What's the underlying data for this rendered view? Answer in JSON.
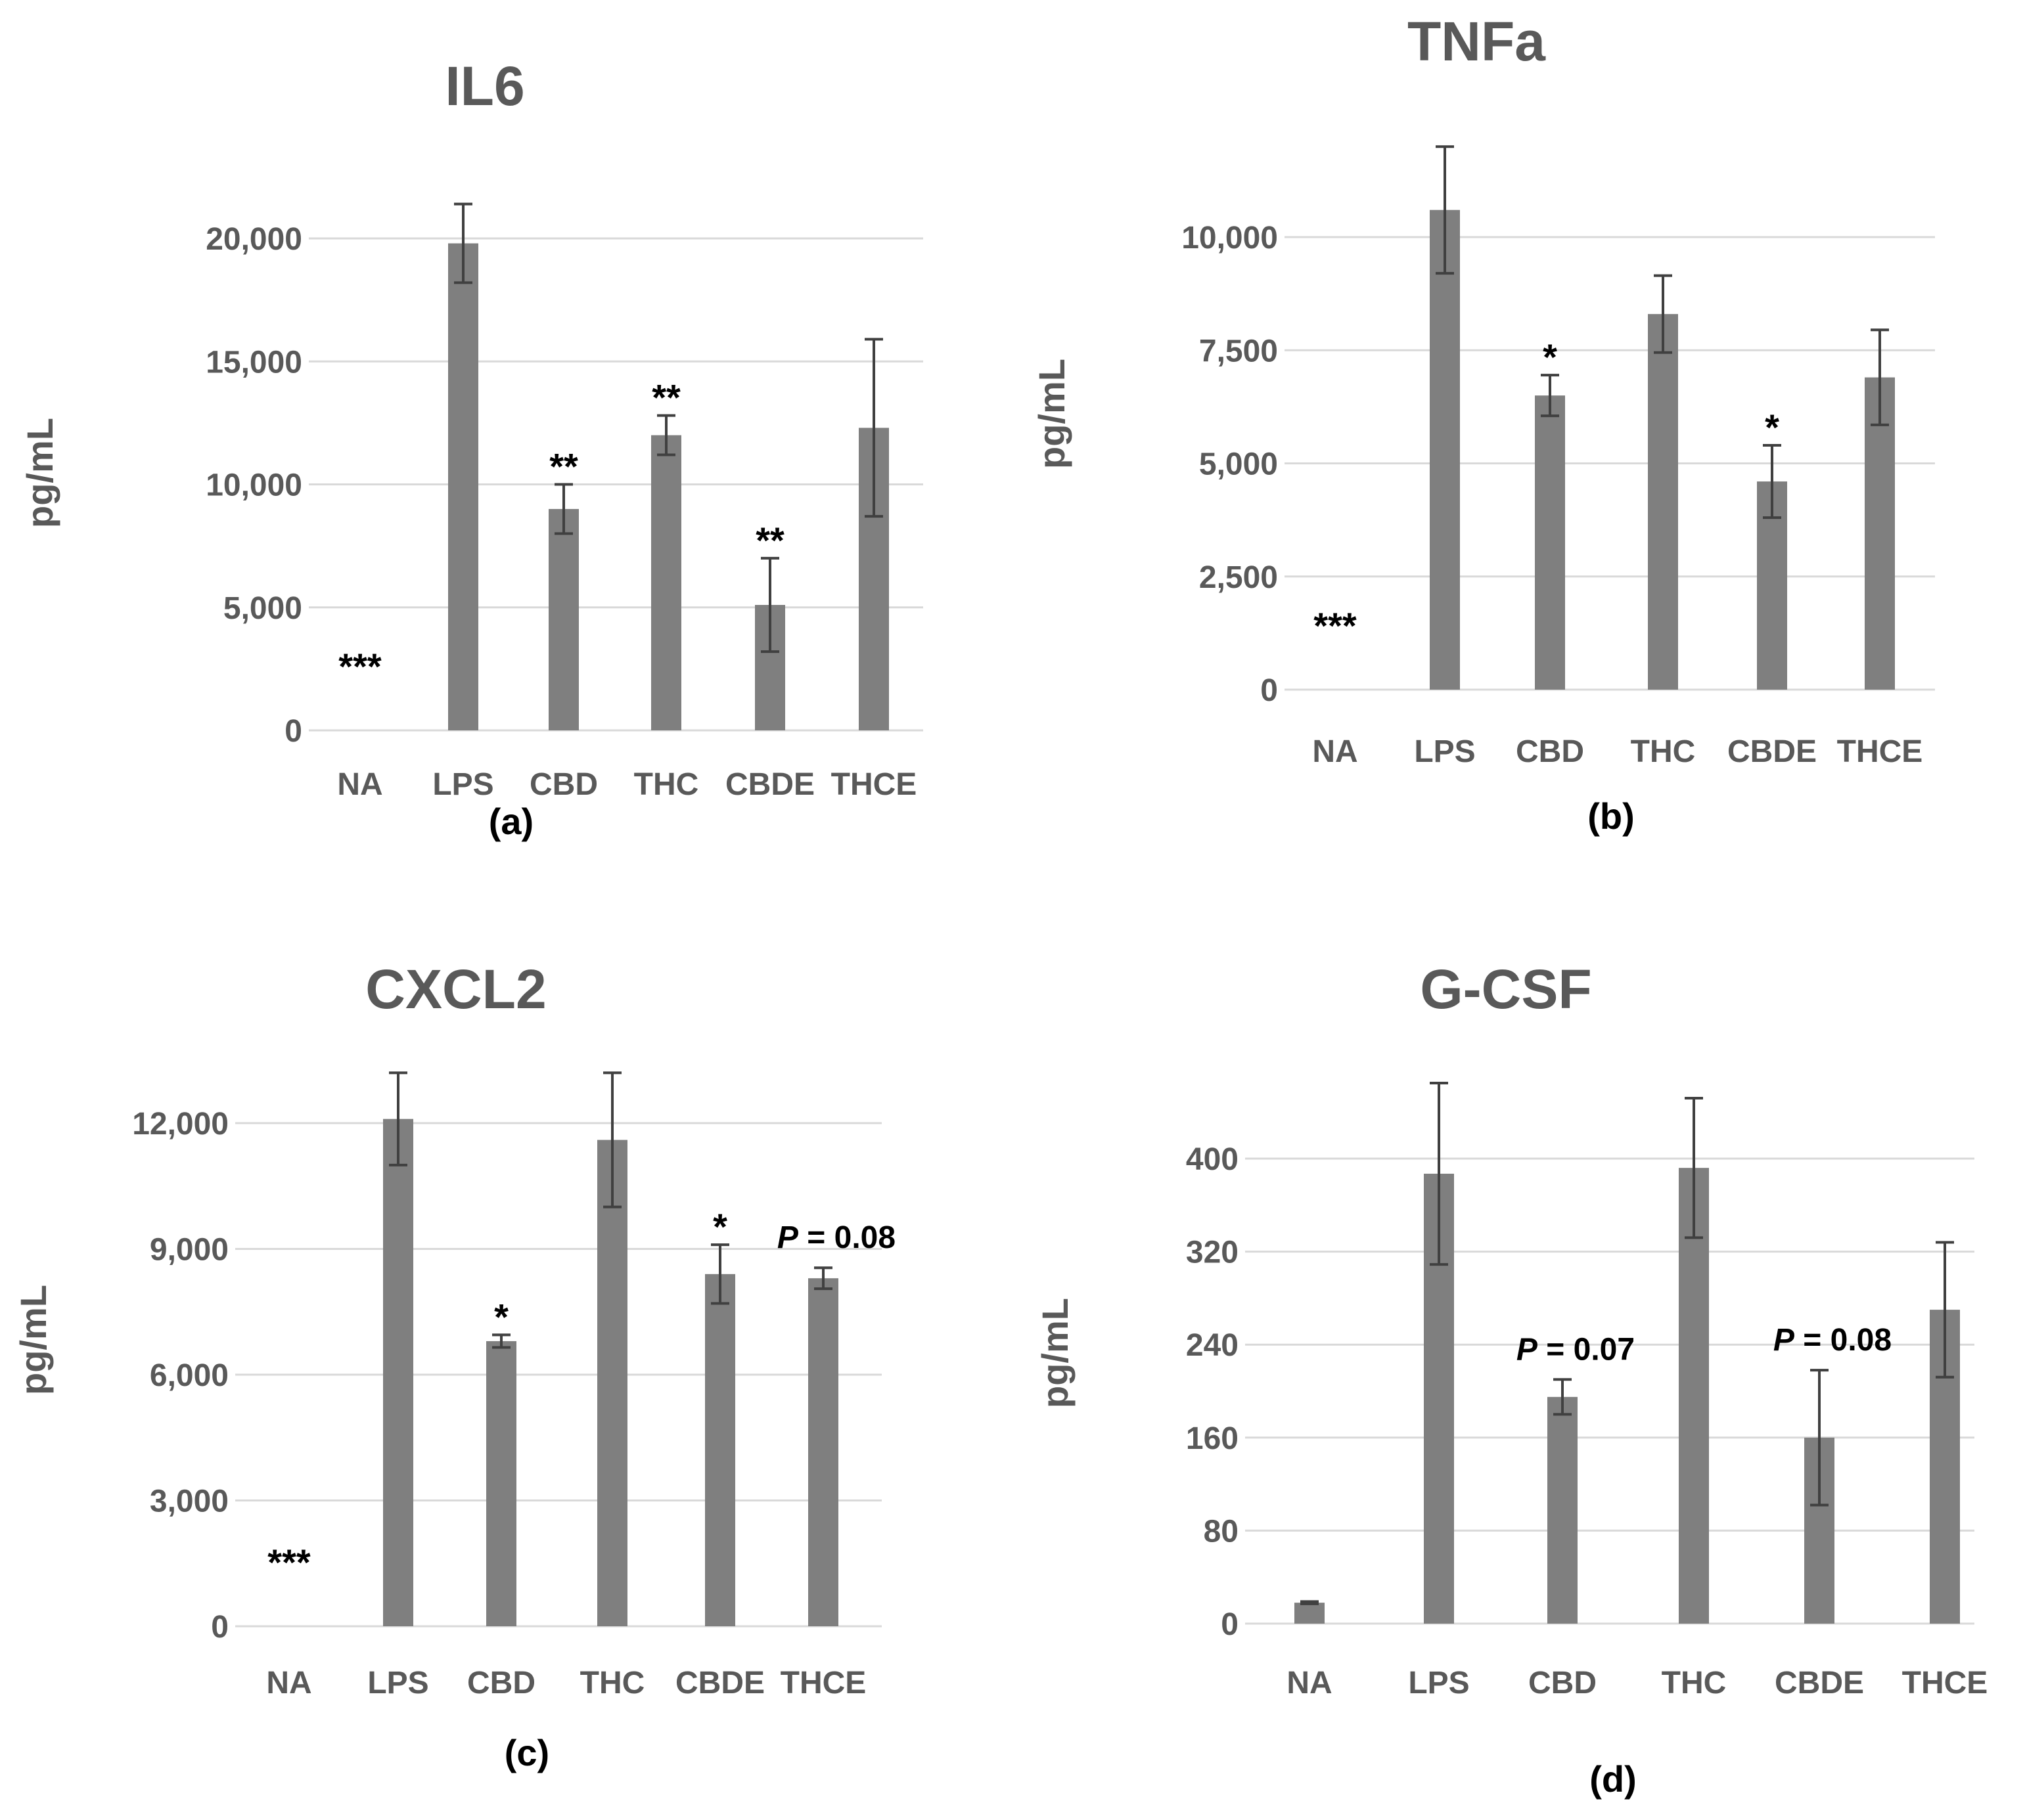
{
  "chart_data": [
    {
      "type": "bar",
      "title": "IL6",
      "ylabel": "pg/mL",
      "panel_label": "(a)",
      "categories": [
        "NA",
        "LPS",
        "CBD",
        "THC",
        "CBDE",
        "THCE"
      ],
      "values": [
        0,
        19800,
        9000,
        12000,
        5100,
        12300
      ],
      "errors": [
        0,
        1600,
        1000,
        800,
        1900,
        3600
      ],
      "significance": [
        "***",
        "",
        "**",
        "**",
        "**",
        ""
      ],
      "ylim": [
        0,
        20000
      ],
      "yticks": [
        0,
        5000,
        10000,
        15000,
        20000
      ],
      "ytick_labels": [
        "0",
        "5,000",
        "10,000",
        "15,000",
        "20,000"
      ],
      "grid": true,
      "legend": "none"
    },
    {
      "type": "bar",
      "title": "TNFa",
      "ylabel": "pg/mL",
      "panel_label": "(b)",
      "categories": [
        "NA",
        "LPS",
        "CBD",
        "THC",
        "CBDE",
        "THCE"
      ],
      "values": [
        0,
        10600,
        6500,
        8300,
        4600,
        6900
      ],
      "errors": [
        0,
        1400,
        450,
        850,
        800,
        1050
      ],
      "significance": [
        "***",
        "",
        "*",
        "",
        "*",
        ""
      ],
      "ylim": [
        0,
        10000
      ],
      "yticks": [
        0,
        2500,
        5000,
        7500,
        10000
      ],
      "ytick_labels": [
        "0",
        "2,500",
        "5,000",
        "7,500",
        "10,000"
      ],
      "grid": true,
      "legend": "none"
    },
    {
      "type": "bar",
      "title": "CXCL2",
      "ylabel": "pg/mL",
      "panel_label": "(c)",
      "categories": [
        "NA",
        "LPS",
        "CBD",
        "THC",
        "CBDE",
        "THCE"
      ],
      "values": [
        0,
        12100,
        6800,
        11600,
        8400,
        8300
      ],
      "errors": [
        0,
        1100,
        150,
        1600,
        700,
        250
      ],
      "significance": [
        "***",
        "",
        "*",
        "",
        "*",
        "P = 0.08"
      ],
      "ylim": [
        0,
        12000
      ],
      "yticks": [
        0,
        3000,
        6000,
        9000,
        12000
      ],
      "ytick_labels": [
        "0",
        "3,000",
        "6,000",
        "9,000",
        "12,000"
      ],
      "grid": true,
      "legend": "none"
    },
    {
      "type": "bar",
      "title": "G-CSF",
      "ylabel": "pg/mL",
      "panel_label": "(d)",
      "categories": [
        "NA",
        "LPS",
        "CBD",
        "THC",
        "CBDE",
        "THCE"
      ],
      "values": [
        18,
        387,
        195,
        392,
        160,
        270
      ],
      "errors": [
        1,
        78,
        15,
        60,
        58,
        58
      ],
      "significance": [
        "",
        "",
        "P = 0.07",
        "",
        "P = 0.08",
        ""
      ],
      "ylim": [
        0,
        400
      ],
      "yticks": [
        0,
        80,
        160,
        240,
        320,
        400
      ],
      "ytick_labels": [
        "0",
        "80",
        "160",
        "240",
        "320",
        "400"
      ],
      "grid": true,
      "legend": "none"
    }
  ]
}
